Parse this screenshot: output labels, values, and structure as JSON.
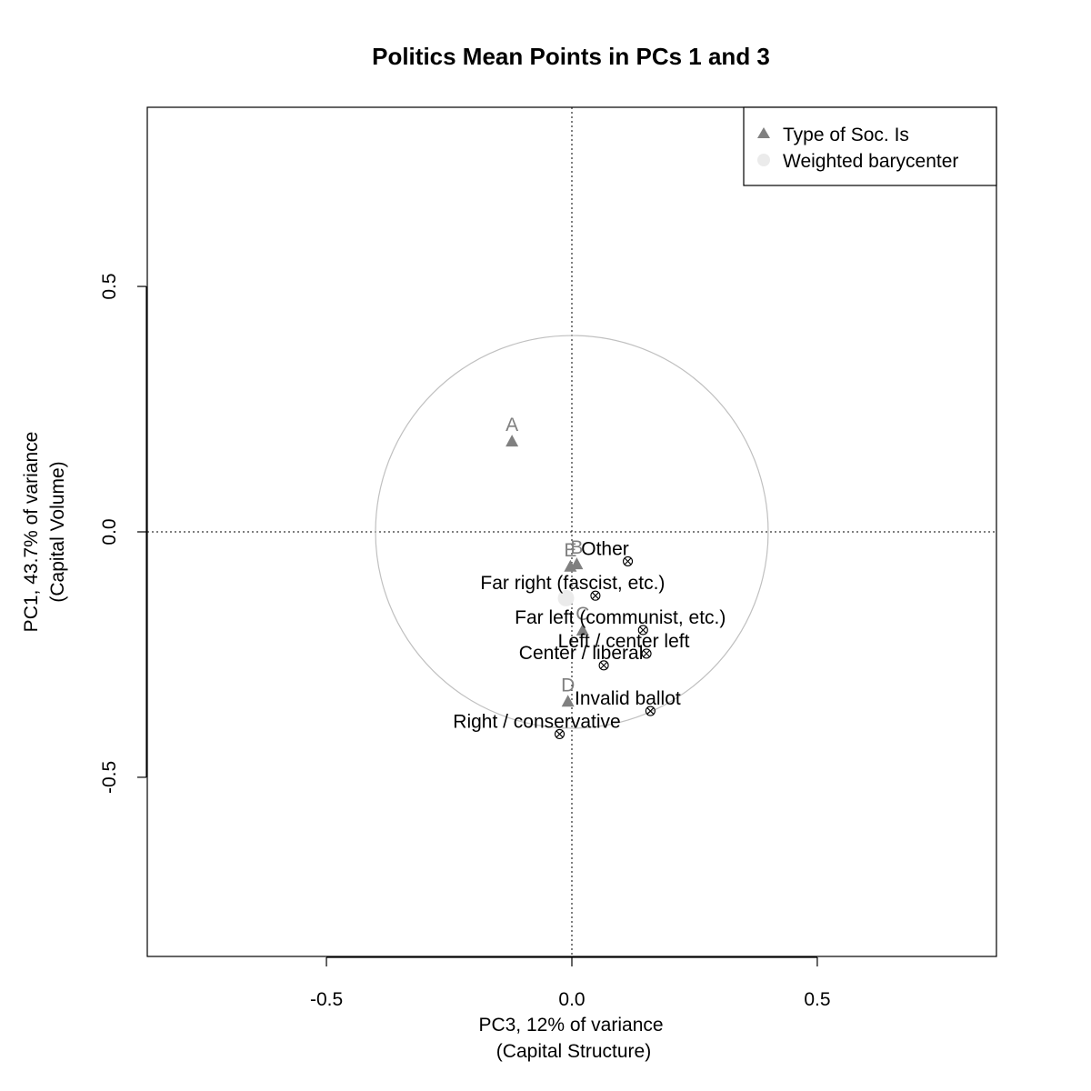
{
  "chart_data": {
    "type": "scatter",
    "title": "Politics Mean Points in PCs 1 and 3",
    "xlabel": [
      "PC3, 12% of variance",
      "(Capital Structure)"
    ],
    "ylabel": [
      "PC1, 43.7% of variance",
      "(Capital Volume)"
    ],
    "xlim": [
      -0.865,
      0.865
    ],
    "ylim": [
      -0.865,
      0.865
    ],
    "x_ticks": [
      {
        "value": -0.5,
        "label": "-0.5"
      },
      {
        "value": 0.0,
        "label": "0.0"
      },
      {
        "value": 0.5,
        "label": "0.5"
      }
    ],
    "y_ticks": [
      {
        "value": -0.5,
        "label": "-0.5"
      },
      {
        "value": 0.0,
        "label": "0.0"
      },
      {
        "value": 0.5,
        "label": "0.5"
      }
    ],
    "reference_lines": {
      "x": 0,
      "y": 0,
      "style": "dotted"
    },
    "circle": {
      "center": [
        0,
        0
      ],
      "radius": 0.4,
      "color": "#c0c0c0"
    },
    "legend": {
      "placement": "top-right",
      "entries": [
        {
          "label": "Type of Soc. Is",
          "symbol": "triangle",
          "color": "#808080"
        },
        {
          "label": "Weighted barycenter",
          "symbol": "circle",
          "color": "#ebebeb"
        }
      ]
    },
    "series": [
      {
        "name": "Type of Soc. Is",
        "symbol": "triangle",
        "color": "#808080",
        "points": [
          {
            "label": "A",
            "x": -0.122,
            "y": 0.185
          },
          {
            "label": "B",
            "x": 0.01,
            "y": -0.065
          },
          {
            "label": "E",
            "x": -0.003,
            "y": -0.07
          },
          {
            "label": "C",
            "x": 0.022,
            "y": -0.2
          },
          {
            "label": "D",
            "x": -0.008,
            "y": -0.345
          }
        ]
      },
      {
        "name": "Weighted barycenter",
        "symbol": "circle",
        "color": "#ebebeb",
        "points": [
          {
            "x": -0.012,
            "y": -0.135
          }
        ]
      },
      {
        "name": "Politics",
        "symbol": "circle-x",
        "color": "#000000",
        "points": [
          {
            "label": "Other",
            "x": 0.114,
            "y": -0.06
          },
          {
            "label": "Far right (fascist, etc.)",
            "x": 0.048,
            "y": -0.13
          },
          {
            "label": "Far left (communist, etc.)",
            "x": 0.145,
            "y": -0.2
          },
          {
            "label": "Left / center left",
            "x": 0.152,
            "y": -0.248
          },
          {
            "label": "Center / liberal",
            "x": 0.065,
            "y": -0.272
          },
          {
            "label": "Invalid ballot",
            "x": 0.16,
            "y": -0.365
          },
          {
            "label": "Right / conservative",
            "x": -0.025,
            "y": -0.412
          }
        ]
      }
    ]
  }
}
